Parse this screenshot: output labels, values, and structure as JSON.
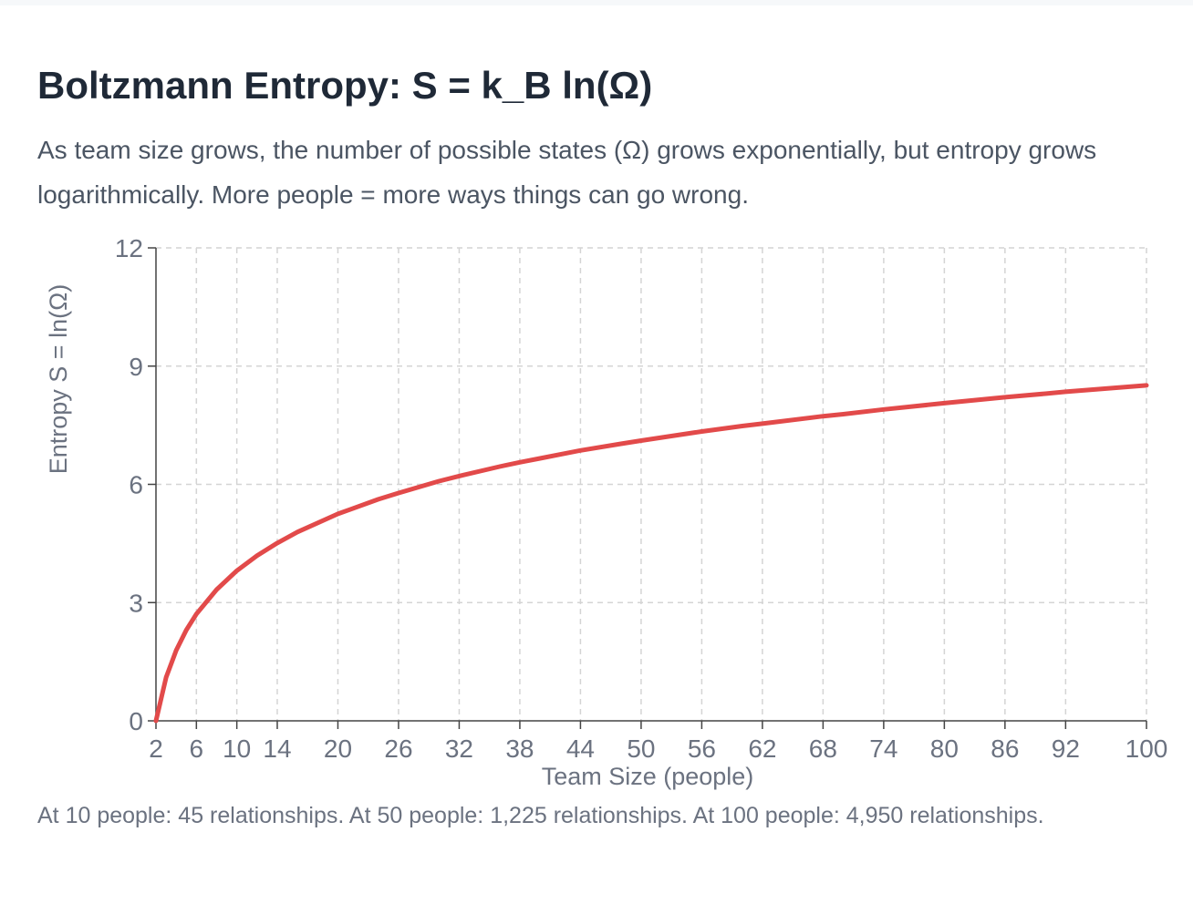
{
  "header": {
    "title": "Boltzmann Entropy: S = k_B ln(Ω)",
    "subtitle": "As team size grows, the number of possible states (Ω) grows exponentially, but entropy grows logarithmically. More people = more ways things can go wrong."
  },
  "footnote": "At 10 people: 45 relationships. At 50 people: 1,225 relationships. At 100 people: 4,950 relationships.",
  "chart_data": {
    "type": "line",
    "xlabel": "Team Size (people)",
    "ylabel": "Entropy S = ln(Ω)",
    "xlim": [
      2,
      100
    ],
    "ylim": [
      0,
      12
    ],
    "x_ticks": [
      2,
      6,
      10,
      14,
      20,
      26,
      32,
      38,
      44,
      50,
      56,
      62,
      68,
      74,
      80,
      86,
      92,
      100
    ],
    "y_ticks": [
      0,
      3,
      6,
      9,
      12
    ],
    "grid": true,
    "series": [
      {
        "color": "#e24a4a",
        "x": [
          2,
          3,
          4,
          5,
          6,
          8,
          10,
          12,
          14,
          16,
          20,
          24,
          26,
          30,
          32,
          36,
          38,
          40,
          44,
          48,
          50,
          56,
          60,
          62,
          68,
          70,
          74,
          80,
          86,
          90,
          92,
          100
        ],
        "y": [
          0,
          1.1,
          1.79,
          2.3,
          2.71,
          3.33,
          3.81,
          4.19,
          4.51,
          4.79,
          5.25,
          5.62,
          5.78,
          6.08,
          6.21,
          6.45,
          6.56,
          6.66,
          6.86,
          7.03,
          7.11,
          7.34,
          7.48,
          7.54,
          7.73,
          7.78,
          7.9,
          8.06,
          8.21,
          8.3,
          8.35,
          8.51
        ]
      }
    ]
  },
  "colors": {
    "line": "#e24a4a",
    "grid": "#d4d4d4",
    "axis": "#444444",
    "text": "#6b7280",
    "title": "#1f2937"
  }
}
